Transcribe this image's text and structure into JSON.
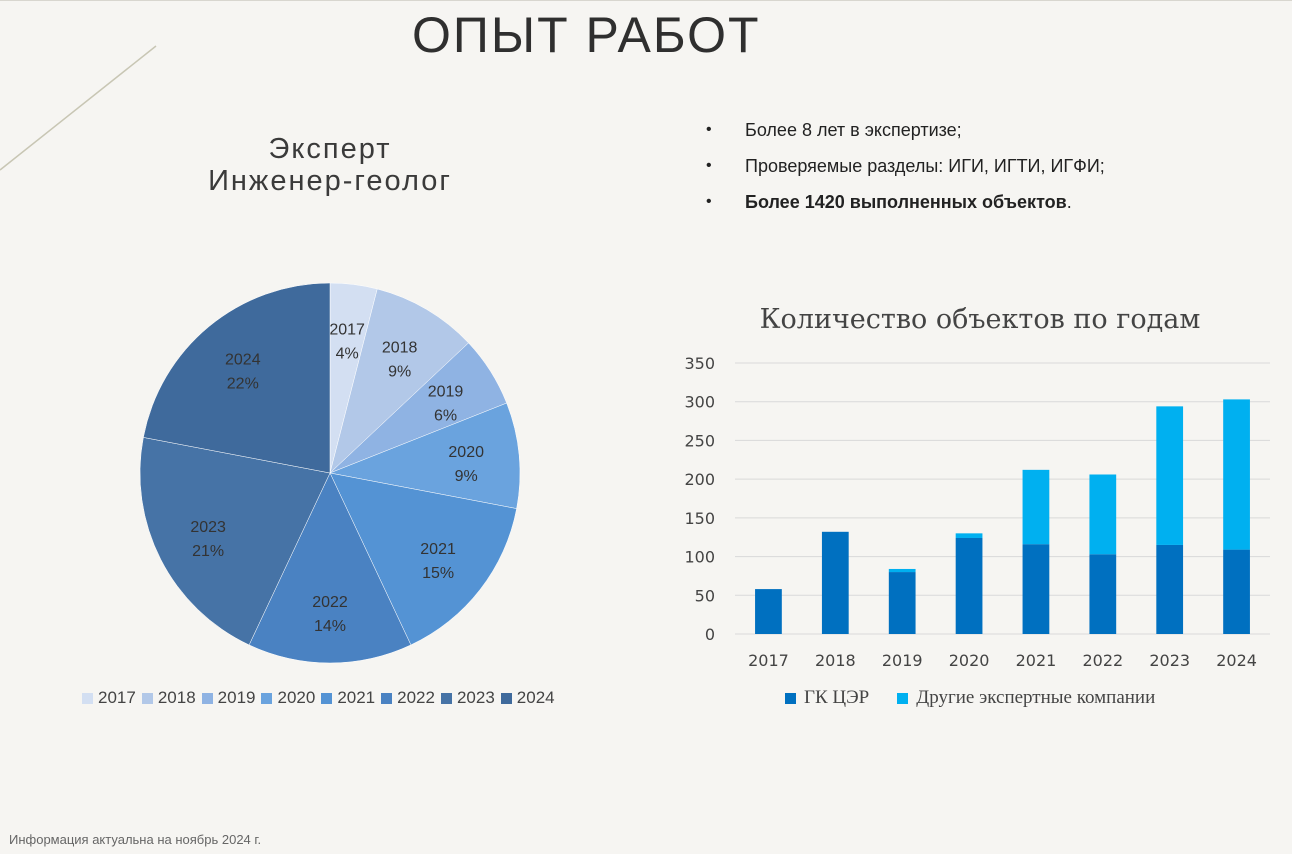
{
  "page": {
    "title": "ОПЫТ РАБОТ",
    "footnote": "Информация актуальна на ноябрь 2024 г."
  },
  "bullets": {
    "marker": "•",
    "items": [
      {
        "text": "Более 8 лет в экспертизе;",
        "bold": "",
        "tail": ""
      },
      {
        "text": "Проверяемые разделы: ИГИ, ИГТИ, ИГФИ;",
        "bold": "",
        "tail": ""
      },
      {
        "text": "",
        "bold": "Более 1420 выполненных объектов",
        "tail": "."
      }
    ]
  },
  "chart_data": [
    {
      "type": "pie",
      "title_lines": [
        "Эксперт",
        "Инженер-геолог"
      ],
      "categories": [
        "2017",
        "2018",
        "2019",
        "2020",
        "2021",
        "2022",
        "2023",
        "2024"
      ],
      "values": [
        4,
        9,
        6,
        9,
        15,
        14,
        21,
        22
      ],
      "value_labels": [
        "4%",
        "9%",
        "6%",
        "9%",
        "15%",
        "14%",
        "21%",
        "22%"
      ],
      "colors": [
        "#d3dff2",
        "#b2c8e8",
        "#8fb3e3",
        "#6aa3de",
        "#5493d4",
        "#4a82c2",
        "#4673a6",
        "#3f6a9c"
      ],
      "legend_position": "bottom"
    },
    {
      "type": "bar",
      "stacked": true,
      "title": "Количество объектов по годам",
      "categories": [
        "2017",
        "2018",
        "2019",
        "2020",
        "2021",
        "2022",
        "2023",
        "2024"
      ],
      "series": [
        {
          "name": "ГК ЦЭР",
          "color": "#0070c0",
          "values": [
            58,
            132,
            80,
            124,
            116,
            103,
            115,
            109
          ]
        },
        {
          "name": "Другие экспертные компании",
          "color": "#00b0f0",
          "values": [
            0,
            0,
            4,
            6,
            96,
            103,
            179,
            194
          ]
        }
      ],
      "ylim": [
        0,
        350
      ],
      "yticks": [
        0,
        50,
        100,
        150,
        200,
        250,
        300,
        350
      ],
      "grid": true,
      "legend_position": "bottom"
    }
  ]
}
